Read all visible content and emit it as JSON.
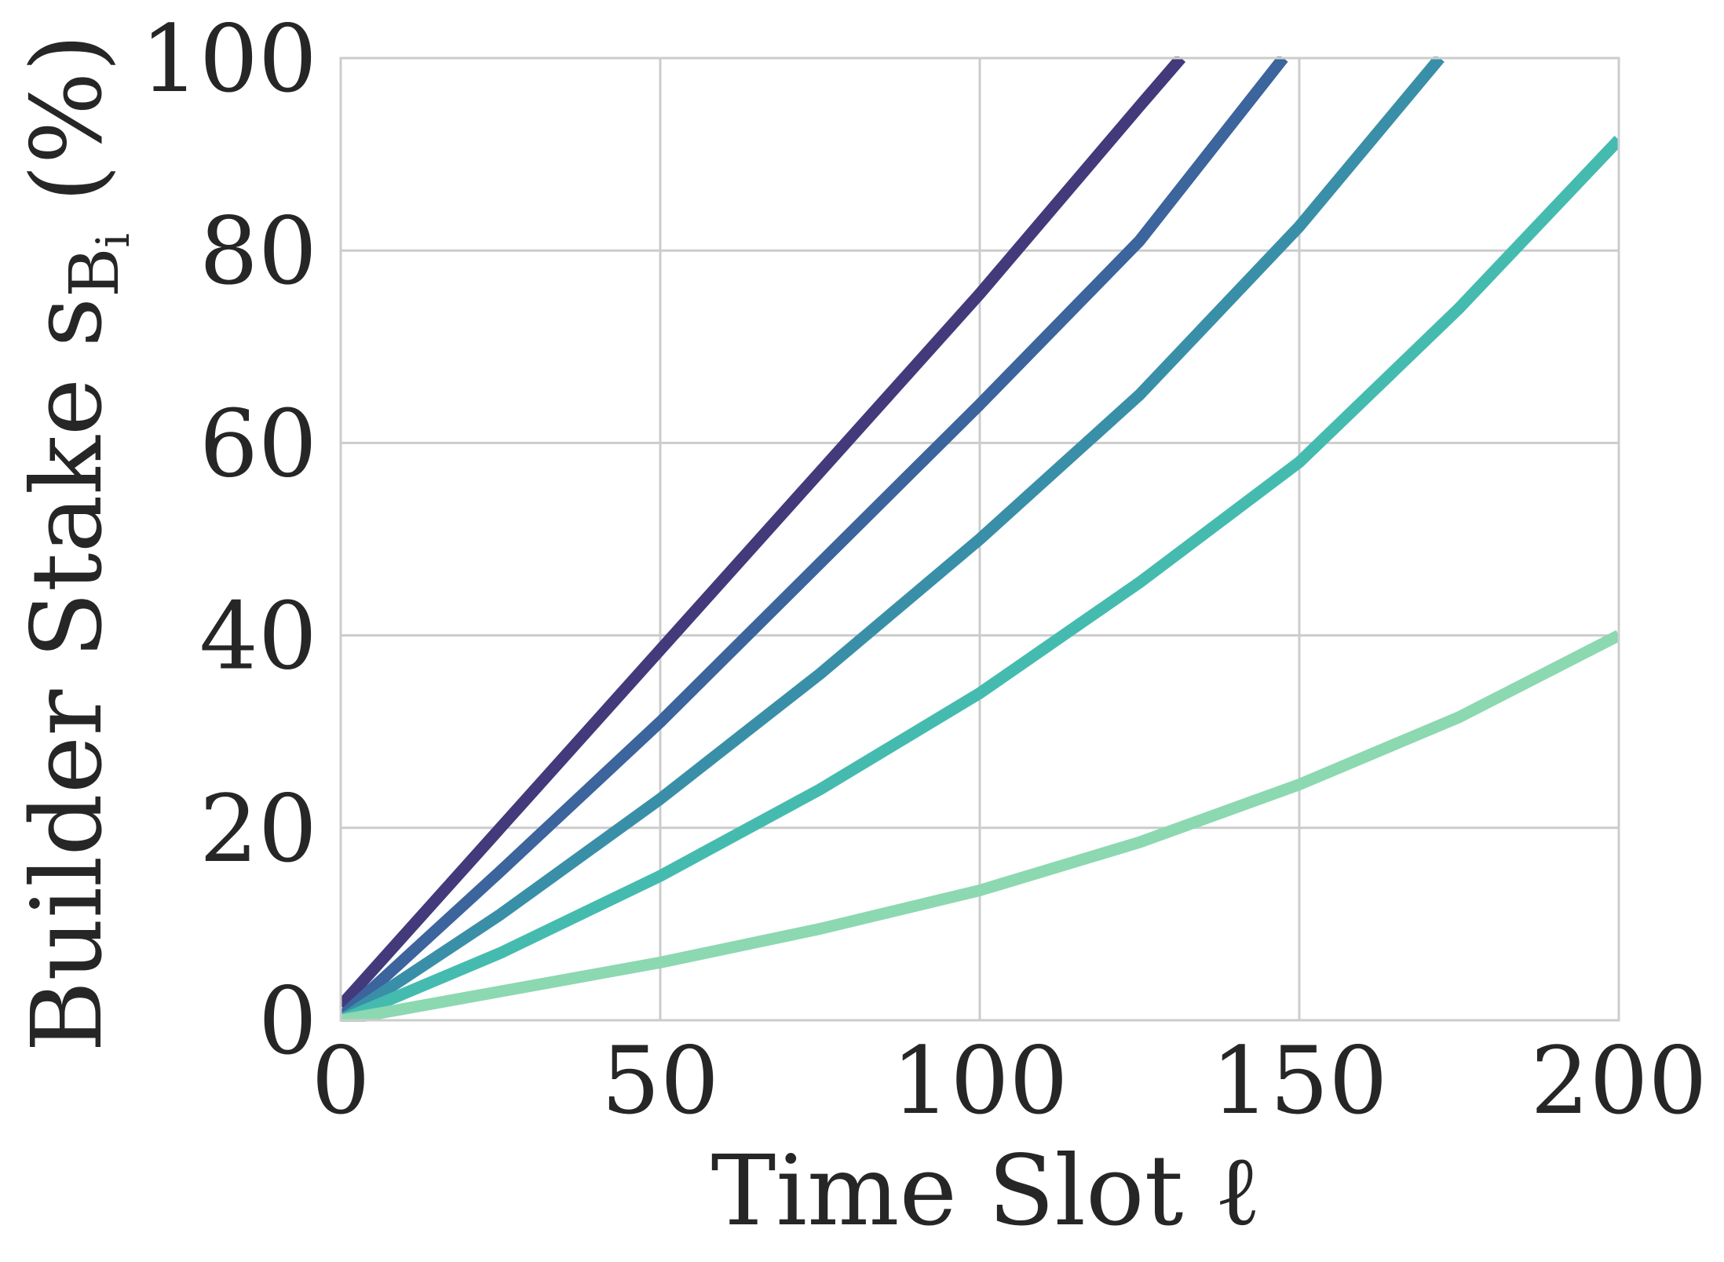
{
  "chart_data": {
    "type": "line",
    "xlabel": "Time Slot ℓ",
    "ylabel_main": "Builder Stake s",
    "ylabel_sub": "B",
    "ylabel_subsub": "i",
    "ylabel_unit": " (%)",
    "xlim": [
      0,
      200
    ],
    "ylim": [
      0,
      100
    ],
    "x_ticks": [
      0,
      50,
      100,
      150,
      200
    ],
    "y_ticks": [
      0,
      20,
      40,
      60,
      80,
      100
    ],
    "x_tick_labels": [
      "0",
      "50",
      "100",
      "150",
      "200"
    ],
    "y_tick_labels": [
      "0",
      "20",
      "40",
      "60",
      "80",
      "100"
    ],
    "grid": true,
    "legend": "none",
    "series": [
      {
        "color": "#433a7c",
        "x": [
          0,
          25,
          50,
          75,
          100,
          125,
          131.5
        ],
        "y": [
          1.5,
          20,
          38.5,
          57,
          75.5,
          95,
          100
        ]
      },
      {
        "color": "#3c649d",
        "x": [
          0,
          25,
          50,
          75,
          100,
          125,
          147.5
        ],
        "y": [
          0.3,
          15.5,
          31,
          47.5,
          64,
          81,
          100
        ]
      },
      {
        "color": "#3a8fa8",
        "x": [
          0,
          25,
          50,
          75,
          100,
          125,
          150,
          172
        ],
        "y": [
          0,
          11,
          23,
          36,
          50,
          65,
          82.5,
          100
        ]
      },
      {
        "color": "#45bbb0",
        "x": [
          0,
          25,
          50,
          75,
          100,
          125,
          150,
          175,
          200
        ],
        "y": [
          0,
          7,
          15,
          24,
          34,
          45.5,
          58,
          74,
          91.5
        ]
      },
      {
        "color": "#8cd8b1",
        "x": [
          0,
          25,
          50,
          75,
          100,
          125,
          150,
          175,
          200
        ],
        "y": [
          0,
          3,
          6,
          9.5,
          13.5,
          18.5,
          24.5,
          31.5,
          40
        ]
      }
    ]
  }
}
